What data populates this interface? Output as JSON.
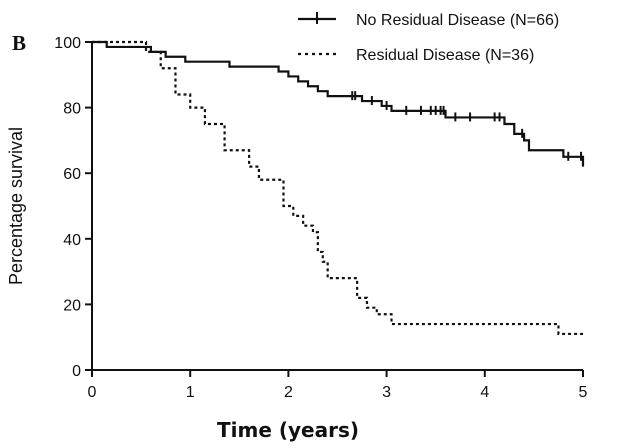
{
  "chart_data": {
    "type": "line",
    "panel_label": "B",
    "xlabel": "Time (years)",
    "ylabel": "Percentage survival",
    "xlim": [
      0,
      5
    ],
    "ylim": [
      0,
      100
    ],
    "x_ticks": [
      "0",
      "1",
      "2",
      "3",
      "4",
      "5"
    ],
    "y_ticks": [
      "0",
      "20",
      "40",
      "60",
      "80",
      "100"
    ],
    "grid": false,
    "legend_position": "top-right",
    "series": [
      {
        "name": "No Residual Disease (N=66)",
        "style": "solid",
        "color": "#111111",
        "steps": [
          [
            0,
            100
          ],
          [
            0.15,
            98.5
          ],
          [
            0.6,
            97
          ],
          [
            0.75,
            95.5
          ],
          [
            0.95,
            94
          ],
          [
            1.4,
            92.5
          ],
          [
            1.9,
            91
          ],
          [
            2.0,
            89.5
          ],
          [
            2.1,
            88
          ],
          [
            2.2,
            86.5
          ],
          [
            2.3,
            85
          ],
          [
            2.4,
            83.5
          ],
          [
            2.75,
            82
          ],
          [
            2.95,
            80.5
          ],
          [
            3.05,
            79
          ],
          [
            3.6,
            77
          ],
          [
            4.2,
            75
          ],
          [
            4.3,
            72
          ],
          [
            4.4,
            70
          ],
          [
            4.45,
            67
          ],
          [
            4.8,
            65
          ],
          [
            5.0,
            62
          ]
        ],
        "censored": [
          [
            2.65,
            83.5
          ],
          [
            2.68,
            83.5
          ],
          [
            2.85,
            82
          ],
          [
            3.0,
            80.5
          ],
          [
            3.2,
            79
          ],
          [
            3.35,
            79
          ],
          [
            3.45,
            79
          ],
          [
            3.5,
            79
          ],
          [
            3.55,
            79
          ],
          [
            3.58,
            79
          ],
          [
            3.7,
            77
          ],
          [
            3.85,
            77
          ],
          [
            4.1,
            77
          ],
          [
            4.15,
            77
          ],
          [
            4.38,
            72
          ],
          [
            4.85,
            65
          ],
          [
            4.98,
            65
          ]
        ]
      },
      {
        "name": "Residual Disease (N=36)",
        "style": "dotted",
        "color": "#111111",
        "steps": [
          [
            0,
            100
          ],
          [
            0.55,
            97
          ],
          [
            0.7,
            92
          ],
          [
            0.85,
            84
          ],
          [
            1.0,
            80
          ],
          [
            1.15,
            75
          ],
          [
            1.35,
            67
          ],
          [
            1.6,
            62
          ],
          [
            1.7,
            58
          ],
          [
            1.95,
            50
          ],
          [
            2.05,
            47
          ],
          [
            2.15,
            44
          ],
          [
            2.25,
            42
          ],
          [
            2.3,
            36
          ],
          [
            2.35,
            33
          ],
          [
            2.4,
            28
          ],
          [
            2.7,
            22
          ],
          [
            2.8,
            19
          ],
          [
            2.9,
            17
          ],
          [
            3.05,
            14
          ],
          [
            4.75,
            11
          ],
          [
            5.0,
            11
          ]
        ],
        "censored": []
      }
    ]
  }
}
